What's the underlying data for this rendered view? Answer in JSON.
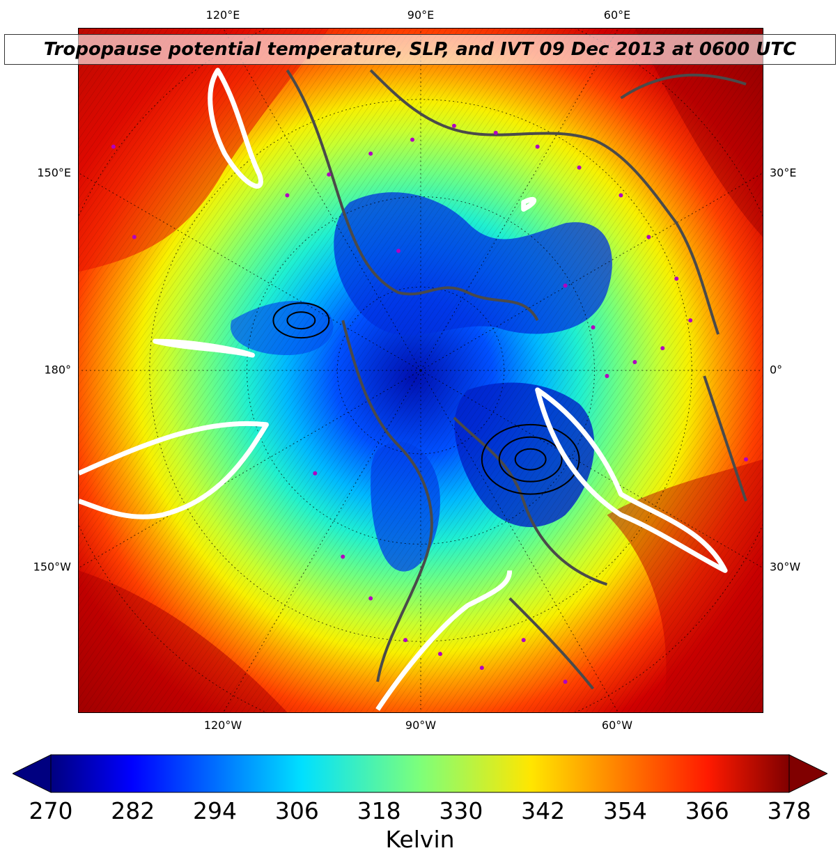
{
  "title": "Tropopause potential temperature, SLP, and IVT 09 Dec 2013 at 0600 UTC",
  "map": {
    "projection": "north-polar-stereographic",
    "lon_labels_top": [
      "120°E",
      "90°E",
      "60°E"
    ],
    "lon_labels_bottom": [
      "120°W",
      "90°W",
      "60°W"
    ],
    "lon_labels_left": [
      "150°E",
      "180°",
      "150°W"
    ],
    "lon_labels_right": [
      "30°E",
      "0°",
      "30°W"
    ],
    "overlays": [
      "tropopause-theta-fill",
      "slp-contours",
      "ivt-contours-white",
      "coastlines",
      "station-markers"
    ],
    "colors": {
      "coastline": "#4a4a4a",
      "ivt_contour": "#ffffff",
      "station_marker": "#b000c0"
    }
  },
  "colorbar": {
    "ticks": [
      "270",
      "282",
      "294",
      "306",
      "318",
      "330",
      "342",
      "354",
      "366",
      "378"
    ],
    "label": "Kelvin",
    "colormap": "jet",
    "extend": "both"
  }
}
